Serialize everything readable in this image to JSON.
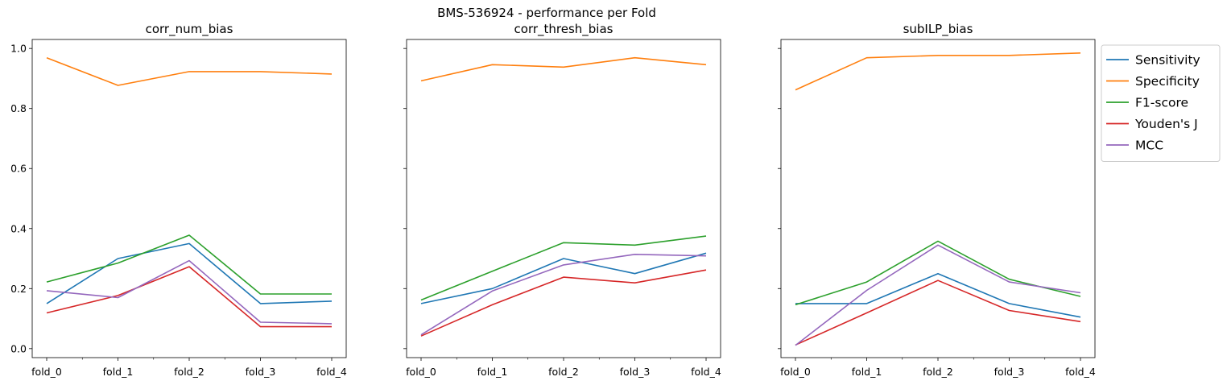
{
  "figure": {
    "suptitle": "BMS-536924 - performance per Fold"
  },
  "legend": {
    "placement": "upper-right-outside",
    "items": [
      {
        "label": "Sensitivity",
        "color": "#1f77b4"
      },
      {
        "label": "Specificity",
        "color": "#ff7f0e"
      },
      {
        "label": "F1-score",
        "color": "#2ca02c"
      },
      {
        "label": "Youden's J",
        "color": "#d62728"
      },
      {
        "label": "MCC",
        "color": "#9467bd"
      }
    ]
  },
  "chart_data": [
    {
      "type": "line",
      "title": "corr_num_bias",
      "categories": [
        "fold_0",
        "fold_1",
        "fold_2",
        "fold_3",
        "fold_4"
      ],
      "ylim": [
        -0.03,
        1.03
      ],
      "yticks": [
        "0.0",
        "0.2",
        "0.4",
        "0.6",
        "0.8",
        "1.0"
      ],
      "show_ytick_labels": true,
      "grid": false,
      "series": [
        {
          "name": "Sensitivity",
          "color": "#1f77b4",
          "values": [
            0.15,
            0.3,
            0.35,
            0.15,
            0.158
          ]
        },
        {
          "name": "Specificity",
          "color": "#ff7f0e",
          "values": [
            0.969,
            0.877,
            0.923,
            0.923,
            0.915
          ]
        },
        {
          "name": "F1-score",
          "color": "#2ca02c",
          "values": [
            0.222,
            0.285,
            0.378,
            0.182,
            0.182
          ]
        },
        {
          "name": "Youden's J",
          "color": "#d62728",
          "values": [
            0.119,
            0.177,
            0.273,
            0.073,
            0.073
          ]
        },
        {
          "name": "MCC",
          "color": "#9467bd",
          "values": [
            0.193,
            0.17,
            0.293,
            0.088,
            0.083
          ]
        }
      ]
    },
    {
      "type": "line",
      "title": "corr_thresh_bias",
      "categories": [
        "fold_0",
        "fold_1",
        "fold_2",
        "fold_3",
        "fold_4"
      ],
      "ylim": [
        -0.03,
        1.03
      ],
      "yticks": [
        "0.0",
        "0.2",
        "0.4",
        "0.6",
        "0.8",
        "1.0"
      ],
      "show_ytick_labels": false,
      "grid": false,
      "series": [
        {
          "name": "Sensitivity",
          "color": "#1f77b4",
          "values": [
            0.15,
            0.2,
            0.3,
            0.25,
            0.318
          ]
        },
        {
          "name": "Specificity",
          "color": "#ff7f0e",
          "values": [
            0.892,
            0.946,
            0.938,
            0.969,
            0.946
          ]
        },
        {
          "name": "F1-score",
          "color": "#2ca02c",
          "values": [
            0.162,
            0.258,
            0.353,
            0.345,
            0.375
          ]
        },
        {
          "name": "Youden's J",
          "color": "#d62728",
          "values": [
            0.042,
            0.146,
            0.238,
            0.219,
            0.262
          ]
        },
        {
          "name": "MCC",
          "color": "#9467bd",
          "values": [
            0.046,
            0.192,
            0.279,
            0.314,
            0.309
          ]
        }
      ]
    },
    {
      "type": "line",
      "title": "subILP_bias",
      "categories": [
        "fold_0",
        "fold_1",
        "fold_2",
        "fold_3",
        "fold_4"
      ],
      "ylim": [
        -0.03,
        1.03
      ],
      "yticks": [
        "0.0",
        "0.2",
        "0.4",
        "0.6",
        "0.8",
        "1.0"
      ],
      "show_ytick_labels": false,
      "grid": false,
      "series": [
        {
          "name": "Sensitivity",
          "color": "#1f77b4",
          "values": [
            0.15,
            0.15,
            0.25,
            0.15,
            0.105
          ]
        },
        {
          "name": "Specificity",
          "color": "#ff7f0e",
          "values": [
            0.862,
            0.969,
            0.977,
            0.977,
            0.985
          ]
        },
        {
          "name": "F1-score",
          "color": "#2ca02c",
          "values": [
            0.146,
            0.222,
            0.358,
            0.231,
            0.174
          ]
        },
        {
          "name": "Youden's J",
          "color": "#d62728",
          "values": [
            0.012,
            0.119,
            0.227,
            0.127,
            0.09
          ]
        },
        {
          "name": "MCC",
          "color": "#9467bd",
          "values": [
            0.011,
            0.194,
            0.345,
            0.222,
            0.186
          ]
        }
      ]
    }
  ]
}
